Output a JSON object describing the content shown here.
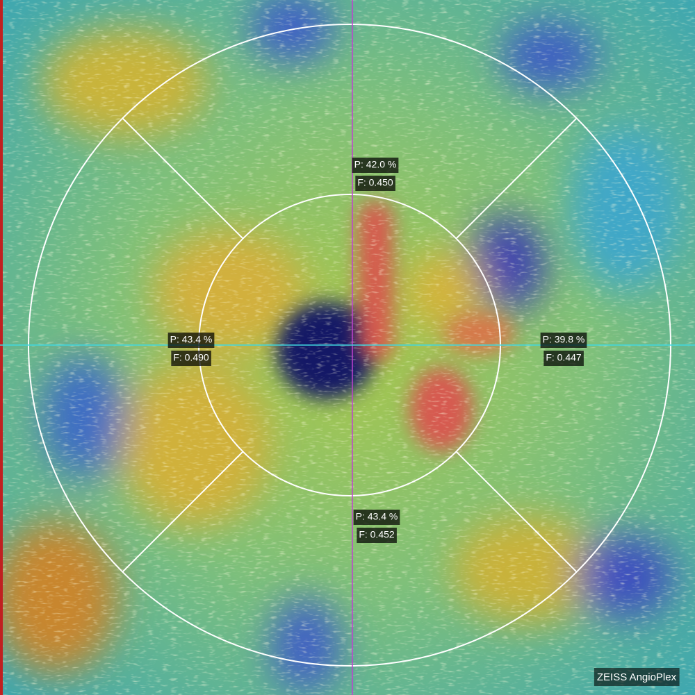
{
  "sectors": [
    {
      "perfusion": "P: 42.0 %",
      "fractal": "F: 0.450"
    },
    {
      "perfusion": "P: 43.4 %",
      "fractal": "F: 0.490"
    },
    {
      "perfusion": "P: 39.8 %",
      "fractal": "F: 0.447"
    },
    {
      "perfusion": "P: 43.4 %",
      "fractal": "F: 0.452"
    }
  ],
  "brand": "ZEISS AngioPlex"
}
